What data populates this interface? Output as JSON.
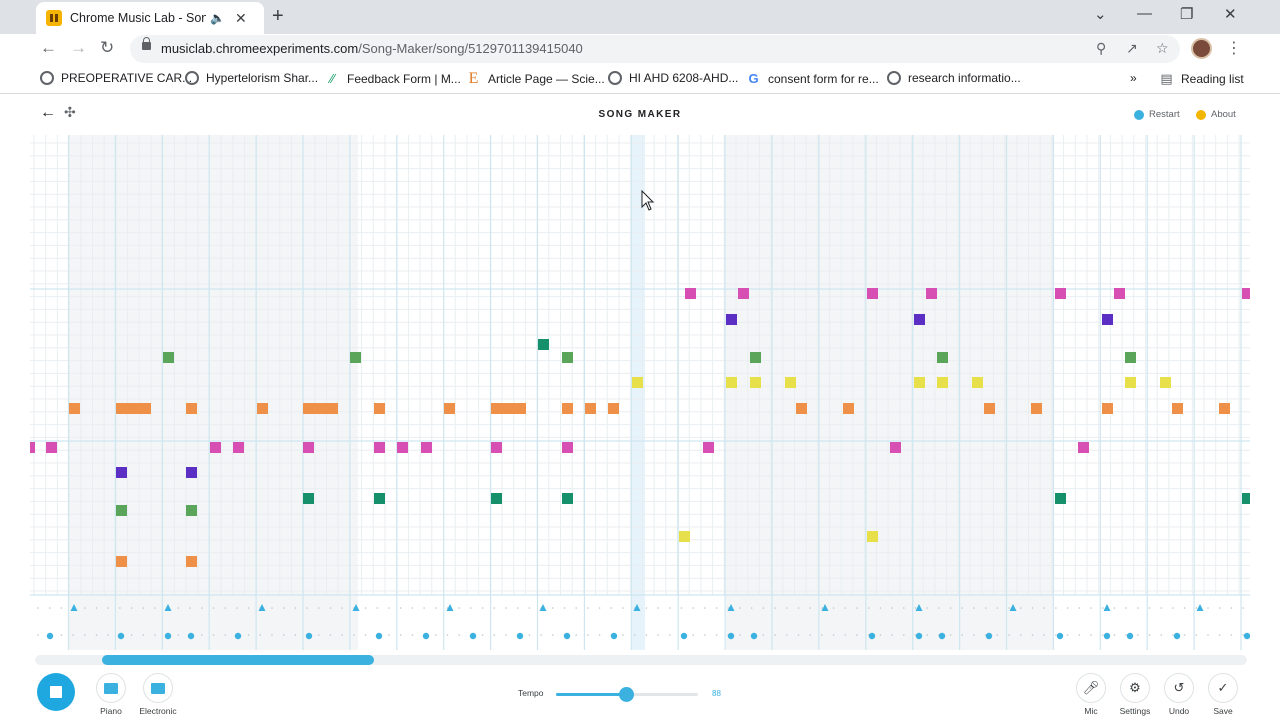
{
  "browser": {
    "tab_title": "Chrome Music Lab - Song Maker",
    "tab_audio_icon": "speaker-icon",
    "url_domain": "musiclab.chromeexperiments.com",
    "url_path": "/Song-Maker/song/5129701139415040",
    "bookmarks": [
      {
        "label": "PREOPERATIVE CAR...",
        "icon": "globe-icon"
      },
      {
        "label": "Hypertelorism Shar...",
        "icon": "globe-icon"
      },
      {
        "label": "Feedback Form | M...",
        "icon": "forms-icon"
      },
      {
        "label": "Article Page — Scie...",
        "icon": "elsevier-icon"
      },
      {
        "label": "HI AHD 6208-AHD...",
        "icon": "globe-icon"
      },
      {
        "label": "consent form for re...",
        "icon": "google-icon"
      },
      {
        "label": "research informatio...",
        "icon": "globe-icon"
      }
    ],
    "bookmarks_more": "»",
    "reading_list": "Reading list"
  },
  "app": {
    "title": "SONG MAKER",
    "restart": "Restart",
    "about": "About",
    "colors": {
      "accent": "#3bb1e0",
      "magenta": "#d84fb3",
      "purple": "#5b2fc4",
      "green": "#5aa55a",
      "teal": "#16906a",
      "yellow": "#e8e04a",
      "orange": "#ee9048"
    }
  },
  "toolbar": {
    "instrument_1": "Piano",
    "instrument_2": "Electronic",
    "tempo_label": "Tempo",
    "tempo_value": "88",
    "tempo_fraction": 0.49,
    "mic": "Mic",
    "settings": "Settings",
    "undo": "Undo",
    "save": "Save"
  },
  "scroll": {
    "position_fraction": 0.0,
    "visible_fraction": 0.225
  }
}
